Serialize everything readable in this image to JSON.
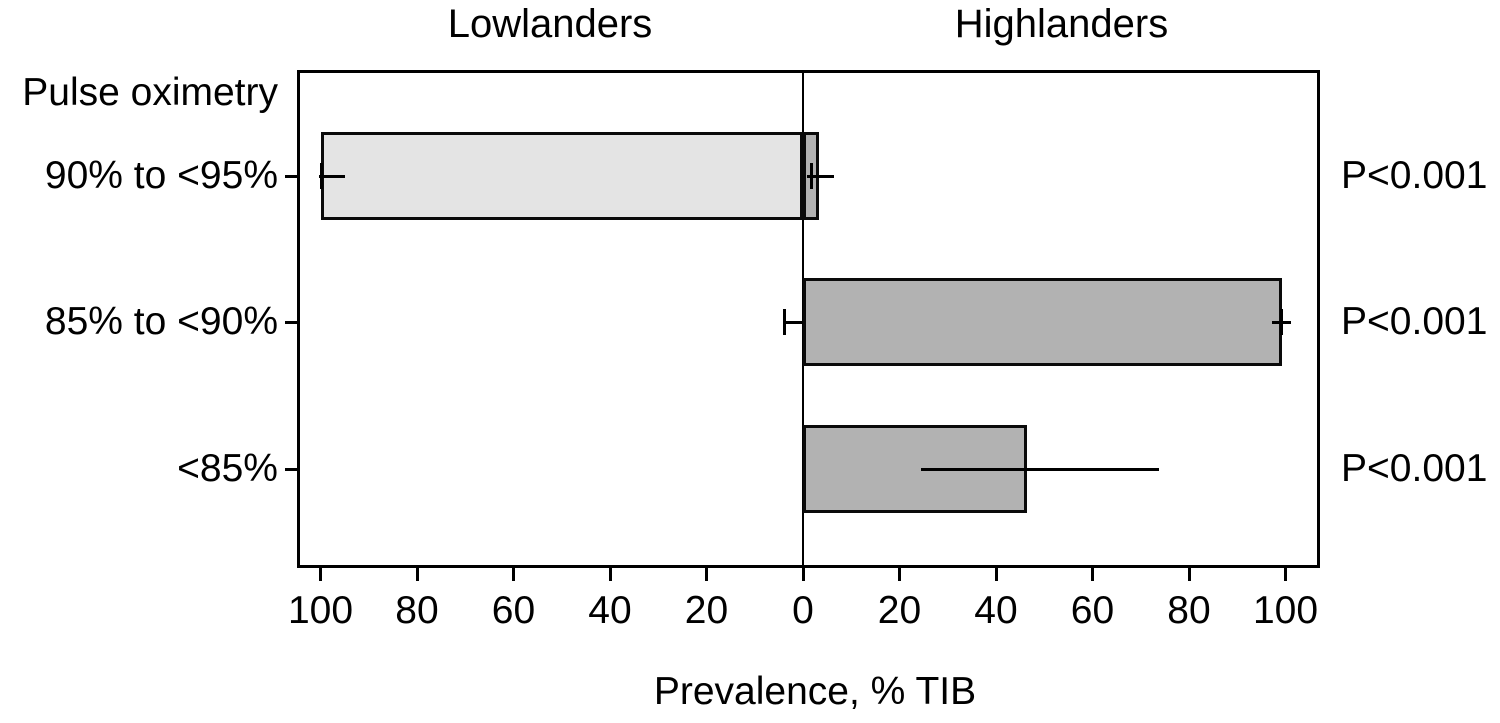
{
  "figure": {
    "background": "#ffffff",
    "ink": "#000000"
  },
  "chart_data": {
    "type": "bar",
    "variant": "diverging-horizontal",
    "title_left": "Lowlanders",
    "title_right": "Highlanders",
    "axis_header": "Pulse oximetry",
    "xlabel": "Prevalence, % TIB",
    "legend": "none",
    "grid": false,
    "x_axis": {
      "tick_labels": [
        "100",
        "80",
        "60",
        "40",
        "20",
        "0",
        "20",
        "40",
        "60",
        "80",
        "100"
      ],
      "tick_values": [
        -100,
        -80,
        -60,
        -40,
        -20,
        0,
        20,
        40,
        60,
        80,
        100
      ],
      "xlim": [
        -106,
        107
      ]
    },
    "categories": [
      "90% to <95%",
      "85% to <90%",
      "<85%"
    ],
    "p_values": [
      "P<0.001",
      "P<0.001",
      "P<0.001"
    ],
    "series": [
      {
        "name": "Lowlanders",
        "side": "left",
        "fill": "#e4e4e4",
        "bars": [
          {
            "value": 99.8,
            "ci_low": 95.0,
            "ci_high": 100.4,
            "cap_at": 99.8
          },
          {
            "value": 0,
            "ci_low": 0,
            "ci_high": 3.9,
            "cap_at": 3.9
          },
          null
        ]
      },
      {
        "name": "Highlanders",
        "side": "right",
        "fill": "#b2b2b2",
        "bars": [
          {
            "value": 3.3,
            "ci_low": 0.9,
            "ci_high": 6.4,
            "cap_at": 1.8
          },
          {
            "value": 99.2,
            "ci_low": 97.2,
            "ci_high": 101.1,
            "cap_at": 99.2
          },
          {
            "value": 46.5,
            "ci_low": 24.5,
            "ci_high": 73.8,
            "cap_at": null
          }
        ]
      }
    ]
  }
}
